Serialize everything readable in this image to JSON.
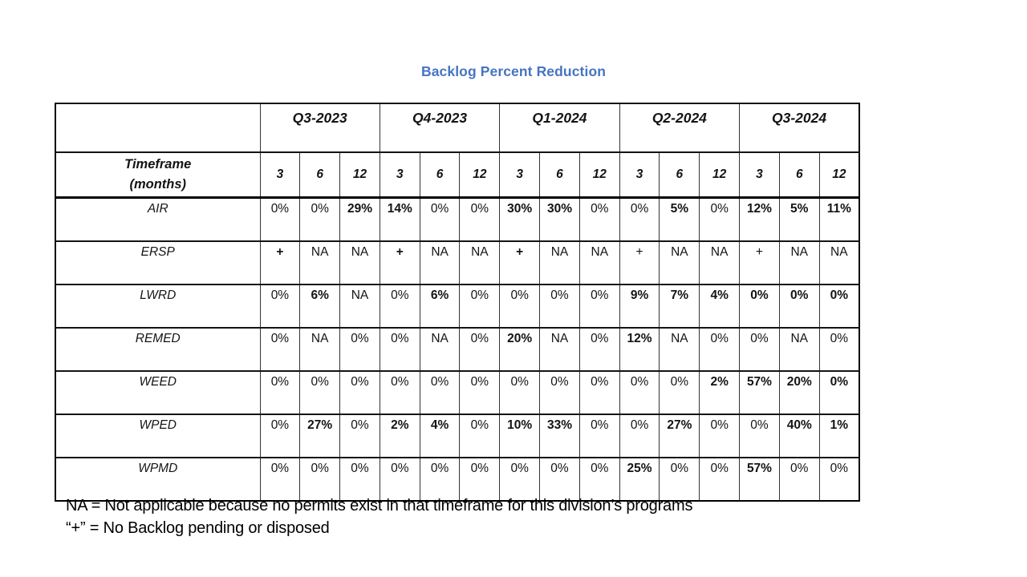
{
  "title": "Backlog Percent Reduction",
  "colors": {
    "title": "#4674C1",
    "highlight": "#8EAADB",
    "highlight_text": "#1F3864",
    "row_shade": "#D9D9D9"
  },
  "table": {
    "corner": "",
    "quarters": [
      "Q3-2023",
      "Q4-2023",
      "Q1-2024",
      "Q2-2024",
      "Q3-2024"
    ],
    "timeframe_label_line1": "Timeframe",
    "timeframe_label_line2": "(months)",
    "month_headers": [
      {
        "v": "3"
      },
      {
        "v": "6"
      },
      {
        "v": "12",
        "navy": true
      },
      {
        "v": "3"
      },
      {
        "v": "6"
      },
      {
        "v": "12",
        "navy": true
      },
      {
        "v": "3"
      },
      {
        "v": "6"
      },
      {
        "v": "12",
        "navy": true
      },
      {
        "v": "3"
      },
      {
        "v": "6"
      },
      {
        "v": "12",
        "navy": true
      },
      {
        "v": "3"
      },
      {
        "v": "6"
      },
      {
        "v": "12"
      }
    ],
    "rows": [
      {
        "label": "AIR",
        "shaded": false,
        "cells": [
          {
            "v": "0%"
          },
          {
            "v": "0%"
          },
          {
            "v": "29%",
            "hl": true
          },
          {
            "v": "14%",
            "hl": true
          },
          {
            "v": "0%"
          },
          {
            "v": "0%"
          },
          {
            "v": "30%",
            "hl": true
          },
          {
            "v": "30%",
            "hl": true
          },
          {
            "v": "0%"
          },
          {
            "v": "0%"
          },
          {
            "v": "5%",
            "hl": true
          },
          {
            "v": "0%"
          },
          {
            "v": "12%",
            "hl": true
          },
          {
            "v": "5%",
            "hl": true
          },
          {
            "v": "11%",
            "hl": true
          }
        ]
      },
      {
        "label": "ERSP",
        "shaded": true,
        "cells": [
          {
            "v": "+",
            "bold": true
          },
          {
            "v": "NA"
          },
          {
            "v": "NA"
          },
          {
            "v": "+",
            "bold": true
          },
          {
            "v": "NA"
          },
          {
            "v": "NA"
          },
          {
            "v": "+",
            "bold": true
          },
          {
            "v": "NA"
          },
          {
            "v": "NA"
          },
          {
            "v": "+"
          },
          {
            "v": "NA"
          },
          {
            "v": "NA"
          },
          {
            "v": "+"
          },
          {
            "v": "NA"
          },
          {
            "v": "NA"
          }
        ]
      },
      {
        "label": "LWRD",
        "shaded": false,
        "cells": [
          {
            "v": "0%"
          },
          {
            "v": "6%",
            "hl": true
          },
          {
            "v": "NA"
          },
          {
            "v": "0%"
          },
          {
            "v": "6%",
            "hl": true
          },
          {
            "v": "0%"
          },
          {
            "v": "0%"
          },
          {
            "v": "0%"
          },
          {
            "v": "0%"
          },
          {
            "v": "9%",
            "hl": true
          },
          {
            "v": "7%",
            "hl": true
          },
          {
            "v": "4%",
            "hl": true
          },
          {
            "v": "0%",
            "hl": true
          },
          {
            "v": "0%",
            "hl": true
          },
          {
            "v": "0%",
            "hl": true
          }
        ]
      },
      {
        "label": "REMED",
        "shaded": true,
        "cells": [
          {
            "v": "0%"
          },
          {
            "v": "NA"
          },
          {
            "v": "0%"
          },
          {
            "v": "0%"
          },
          {
            "v": "NA"
          },
          {
            "v": "0%"
          },
          {
            "v": "20%",
            "hl": true
          },
          {
            "v": "NA"
          },
          {
            "v": "0%"
          },
          {
            "v": "12%",
            "hl": true
          },
          {
            "v": "NA"
          },
          {
            "v": "0%"
          },
          {
            "v": "0%"
          },
          {
            "v": "NA"
          },
          {
            "v": "0%"
          }
        ]
      },
      {
        "label": "WEED",
        "shaded": false,
        "cells": [
          {
            "v": "0%"
          },
          {
            "v": "0%"
          },
          {
            "v": "0%"
          },
          {
            "v": "0%"
          },
          {
            "v": "0%"
          },
          {
            "v": "0%"
          },
          {
            "v": "0%"
          },
          {
            "v": "0%"
          },
          {
            "v": "0%"
          },
          {
            "v": "0%"
          },
          {
            "v": "0%"
          },
          {
            "v": "2%",
            "hl": true
          },
          {
            "v": "57%",
            "hl": true
          },
          {
            "v": "20%",
            "hl": true
          },
          {
            "v": "0%",
            "hl": true
          }
        ]
      },
      {
        "label": "WPED",
        "shaded": true,
        "cells": [
          {
            "v": "0%"
          },
          {
            "v": "27%",
            "hl": true
          },
          {
            "v": "0%"
          },
          {
            "v": "2%",
            "bold": true
          },
          {
            "v": "4%",
            "hl": true
          },
          {
            "v": "0%"
          },
          {
            "v": "10%",
            "hl": true
          },
          {
            "v": "33%",
            "hl": true
          },
          {
            "v": "0%"
          },
          {
            "v": "0%"
          },
          {
            "v": "27%",
            "hl": true
          },
          {
            "v": "0%"
          },
          {
            "v": "0%"
          },
          {
            "v": "40%",
            "hl": true
          },
          {
            "v": "1%",
            "hl": true
          }
        ]
      },
      {
        "label": "WPMD",
        "shaded": false,
        "cells": [
          {
            "v": "0%"
          },
          {
            "v": "0%"
          },
          {
            "v": "0%"
          },
          {
            "v": "0%"
          },
          {
            "v": "0%"
          },
          {
            "v": "0%"
          },
          {
            "v": "0%"
          },
          {
            "v": "0%"
          },
          {
            "v": "0%"
          },
          {
            "v": "25%",
            "hl": true
          },
          {
            "v": "0%"
          },
          {
            "v": "0%"
          },
          {
            "v": "57%",
            "hl": true
          },
          {
            "v": "0%"
          },
          {
            "v": "0%"
          }
        ]
      }
    ]
  },
  "footnotes": [
    "NA = Not applicable because no permits exist in that timeframe for this division’s programs",
    "“+” = No Backlog pending or disposed"
  ]
}
